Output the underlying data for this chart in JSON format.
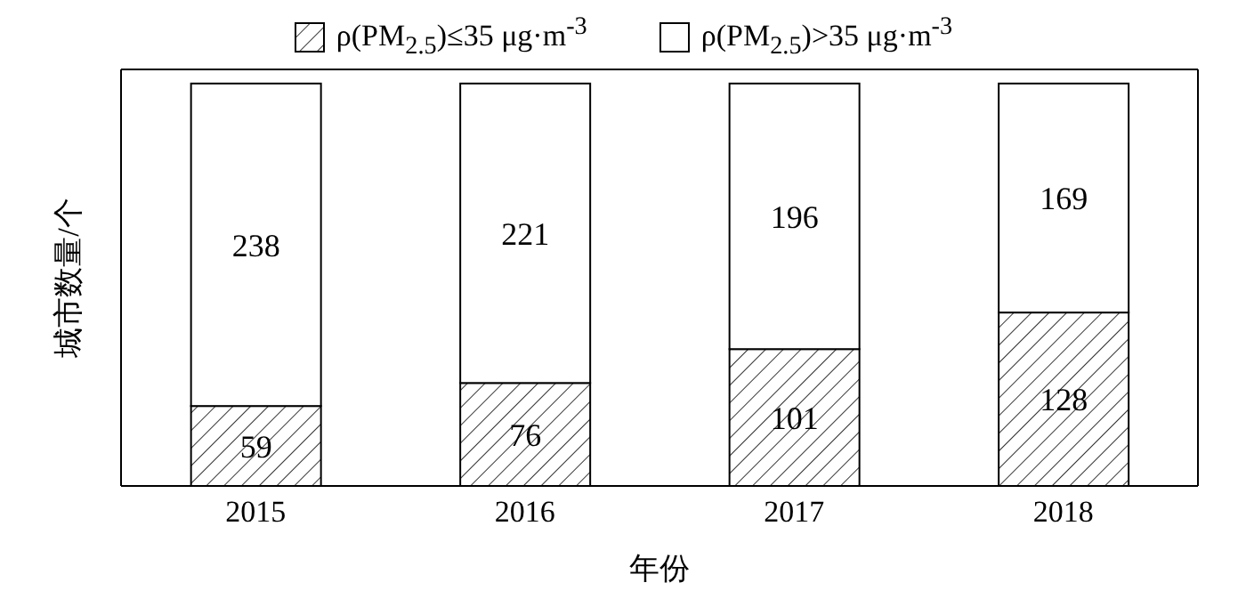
{
  "chart_data": {
    "type": "bar",
    "stacked": true,
    "xlabel": "年份",
    "ylabel": "城市数量/个",
    "categories": [
      "2015",
      "2016",
      "2017",
      "2018"
    ],
    "series": [
      {
        "name": "ρ(PM$_{2.5}$)≤35 μg·m$^{-3}$",
        "color": "#000000",
        "values": [
          59,
          76,
          101,
          128
        ]
      },
      {
        "name": "ρ(PM$_{2.5}$)>35 μg·m$^{-3}$",
        "color": "#ffffff",
        "values": [
          238,
          221,
          196,
          169
        ]
      }
    ],
    "data_labels": true,
    "legend": "top",
    "tick_labels": "x",
    "grid": false
  }
}
